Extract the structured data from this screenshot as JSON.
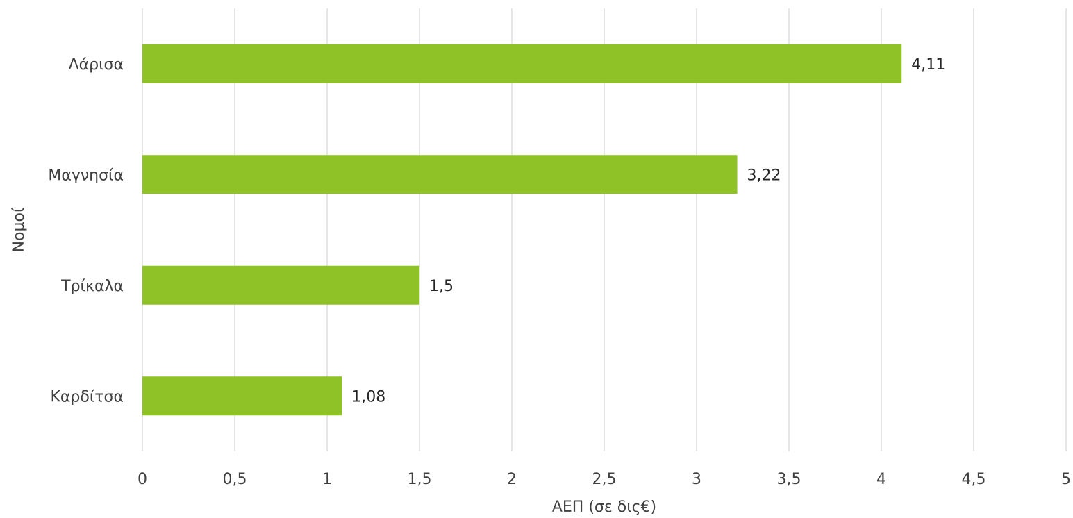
{
  "chart_data": {
    "type": "bar",
    "orientation": "horizontal",
    "categories": [
      "Λάρισα",
      "Μαγνησία",
      "Τρίκαλα",
      "Καρδίτσα"
    ],
    "values": [
      4.11,
      3.22,
      1.5,
      1.08
    ],
    "data_labels": [
      "4,11",
      "3,22",
      "1,5",
      "1,08"
    ],
    "x_ticks": [
      "0",
      "0,5",
      "1",
      "1,5",
      "2",
      "2,5",
      "3",
      "3,5",
      "4",
      "4,5",
      "5"
    ],
    "xlim": [
      0,
      5
    ],
    "xlabel": "ΑΕΠ (σε δις€)",
    "ylabel": "Νομοί",
    "title": "",
    "grid": "vertical",
    "legend": "none",
    "bar_color": "#8fc226"
  }
}
